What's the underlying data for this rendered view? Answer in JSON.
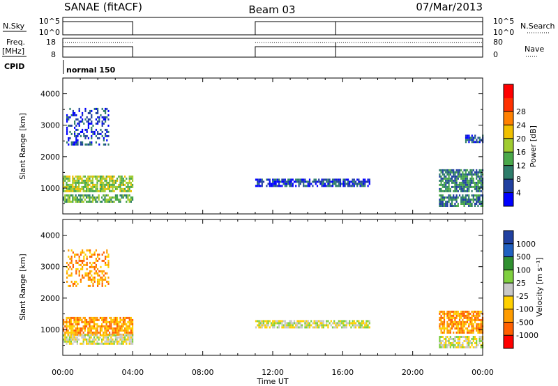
{
  "header": {
    "station": "SANAE (fitACF)",
    "beam": "Beam 03",
    "date": "07/Mar/2013"
  },
  "panels": {
    "nsky_label": "N.Sky",
    "nsky_ticks": [
      "10^5",
      "10^0"
    ],
    "nsearch_label": "N.Search",
    "freq_label": "Freq.",
    "freq_unit": "[MHz]",
    "freq_ticks": [
      "18",
      "8"
    ],
    "nave_label": "Nave",
    "nave_ticks": [
      "80",
      "0"
    ],
    "cpid_label": "CPID",
    "cpid_value": "normal 150",
    "power_title": "Power [dB]",
    "velocity_title": "Velocity [m s⁻¹]"
  },
  "colors": {
    "power_scale": [
      "#0000ff",
      "#2040a0",
      "#2e7d6b",
      "#4aa84a",
      "#a0cc30",
      "#f0c000",
      "#ff8000",
      "#ff3000",
      "#ff0000"
    ],
    "velocity_scale": [
      "#ff0000",
      "#ff6000",
      "#ff9c00",
      "#ffd000",
      "#c8c8c8",
      "#80d040",
      "#309030",
      "#2060c0",
      "#2040a0"
    ]
  },
  "chart_data": [
    {
      "type": "heatmap",
      "name": "power",
      "title": "",
      "xlabel": "",
      "ylabel": "Slant Range [km]",
      "x_ticks": [
        "00:00",
        "04:00",
        "08:00",
        "12:00",
        "16:00",
        "20:00",
        "00:00"
      ],
      "y_ticks": [
        "1000",
        "2000",
        "3000",
        "4000"
      ],
      "xlim_hours": [
        0,
        24
      ],
      "ylim_km": [
        180,
        4500
      ],
      "colorbar": {
        "label": "Power [dB]",
        "ticks": [
          "4",
          "8",
          "12",
          "16",
          "20",
          "24",
          "28"
        ],
        "range": [
          0,
          30
        ]
      },
      "data_periods_hours": [
        [
          0.0,
          4.0
        ],
        [
          11.0,
          24.0
        ]
      ],
      "echo_regions": [
        {
          "t": [
            0.0,
            4.0
          ],
          "r": [
            900,
            1400
          ],
          "value": 14
        },
        {
          "t": [
            0.0,
            4.0
          ],
          "r": [
            550,
            800
          ],
          "value": 10
        },
        {
          "t": [
            0.2,
            2.6
          ],
          "r": [
            2400,
            3550
          ],
          "value": 5
        },
        {
          "t": [
            11.0,
            17.5
          ],
          "r": [
            1100,
            1300
          ],
          "value": 4
        },
        {
          "t": [
            21.5,
            24.0
          ],
          "r": [
            900,
            1600
          ],
          "value": 8
        },
        {
          "t": [
            21.5,
            24.0
          ],
          "r": [
            450,
            800
          ],
          "value": 9
        },
        {
          "t": [
            23.0,
            24.0
          ],
          "r": [
            2500,
            2700
          ],
          "value": 3
        }
      ]
    },
    {
      "type": "heatmap",
      "name": "velocity",
      "title": "",
      "xlabel": "Time UT",
      "ylabel": "Slant Range [km]",
      "x_ticks": [
        "00:00",
        "04:00",
        "08:00",
        "12:00",
        "16:00",
        "20:00",
        "00:00"
      ],
      "y_ticks": [
        "1000",
        "2000",
        "3000",
        "4000"
      ],
      "xlim_hours": [
        0,
        24
      ],
      "ylim_km": [
        180,
        4500
      ],
      "colorbar": {
        "label": "Velocity [m s⁻¹]",
        "ticks": [
          "1000",
          "500",
          "100",
          "25",
          "-25",
          "-100",
          "-500",
          "-1000"
        ]
      },
      "data_periods_hours": [
        [
          0.0,
          4.0
        ],
        [
          11.0,
          24.0
        ]
      ],
      "echo_regions": [
        {
          "t": [
            0.0,
            4.0
          ],
          "r": [
            850,
            1400
          ],
          "value": -100
        },
        {
          "t": [
            0.0,
            4.0
          ],
          "r": [
            550,
            850
          ],
          "value": 0
        },
        {
          "t": [
            0.2,
            2.6
          ],
          "r": [
            2400,
            3550
          ],
          "value": -300
        },
        {
          "t": [
            11.0,
            17.5
          ],
          "r": [
            1100,
            1300
          ],
          "value": 0
        },
        {
          "t": [
            21.5,
            24.0
          ],
          "r": [
            900,
            1600
          ],
          "value": -200
        },
        {
          "t": [
            21.5,
            24.0
          ],
          "r": [
            450,
            800
          ],
          "value": 0
        }
      ]
    }
  ]
}
